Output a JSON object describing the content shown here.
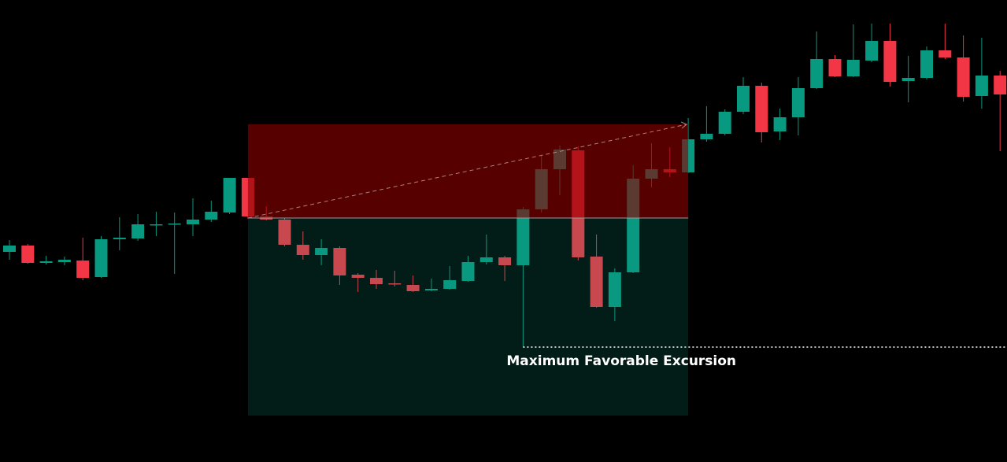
{
  "chart_data": {
    "type": "candlestick",
    "up_color": "#089981",
    "down_color": "#f23645",
    "background": "#000000",
    "ylim": [
      0,
      587
    ],
    "open": [
      267,
      275,
      253,
      254,
      256,
      235,
      283,
      284,
      302,
      302,
      302,
      308,
      317,
      361,
      312,
      308,
      276,
      263,
      272,
      238,
      234,
      227,
      225,
      218,
      220,
      230,
      254,
      260,
      250,
      321,
      372,
      396,
      261,
      197,
      241,
      360,
      372,
      368,
      410,
      417,
      445,
      478,
      420,
      438,
      475,
      512,
      490,
      510,
      535,
      484,
      488,
      523,
      514,
      465,
      491
    ],
    "high": [
      282,
      277,
      262,
      261,
      285,
      287,
      311,
      315,
      318,
      317,
      335,
      332,
      361,
      361,
      325,
      310,
      293,
      283,
      274,
      240,
      244,
      243,
      237,
      233,
      249,
      262,
      289,
      262,
      324,
      389,
      402,
      401,
      289,
      246,
      377,
      405,
      400,
      437,
      452,
      448,
      489,
      482,
      449,
      489,
      547,
      517,
      556,
      557,
      557,
      516,
      528,
      557,
      542,
      539,
      497
    ],
    "low": [
      257,
      252,
      251,
      250,
      231,
      234,
      269,
      281,
      287,
      239,
      287,
      305,
      315,
      309,
      307,
      274,
      257,
      250,
      225,
      216,
      220,
      223,
      216,
      217,
      219,
      229,
      251,
      230,
      146,
      317,
      339,
      256,
      196,
      179,
      240,
      349,
      362,
      367,
      407,
      415,
      442,
      406,
      409,
      415,
      474,
      489,
      489,
      508,
      477,
      457,
      486,
      512,
      458,
      449,
      395
    ],
    "close": [
      275,
      253,
      255,
      257,
      234,
      283,
      285,
      302,
      302,
      303,
      308,
      318,
      361,
      312,
      308,
      276,
      263,
      272,
      237,
      234,
      226,
      226,
      217,
      220,
      231,
      254,
      260,
      250,
      321,
      372,
      397,
      260,
      197,
      241,
      360,
      372,
      368,
      410,
      417,
      445,
      478,
      419,
      438,
      475,
      512,
      490,
      511,
      535,
      483,
      488,
      523,
      514,
      464,
      491,
      467
    ],
    "position": {
      "entry": 310,
      "stop": 429,
      "target": 59
    },
    "mfe": {
      "value": 146,
      "label": "Maximum Favorable Excursion"
    }
  }
}
